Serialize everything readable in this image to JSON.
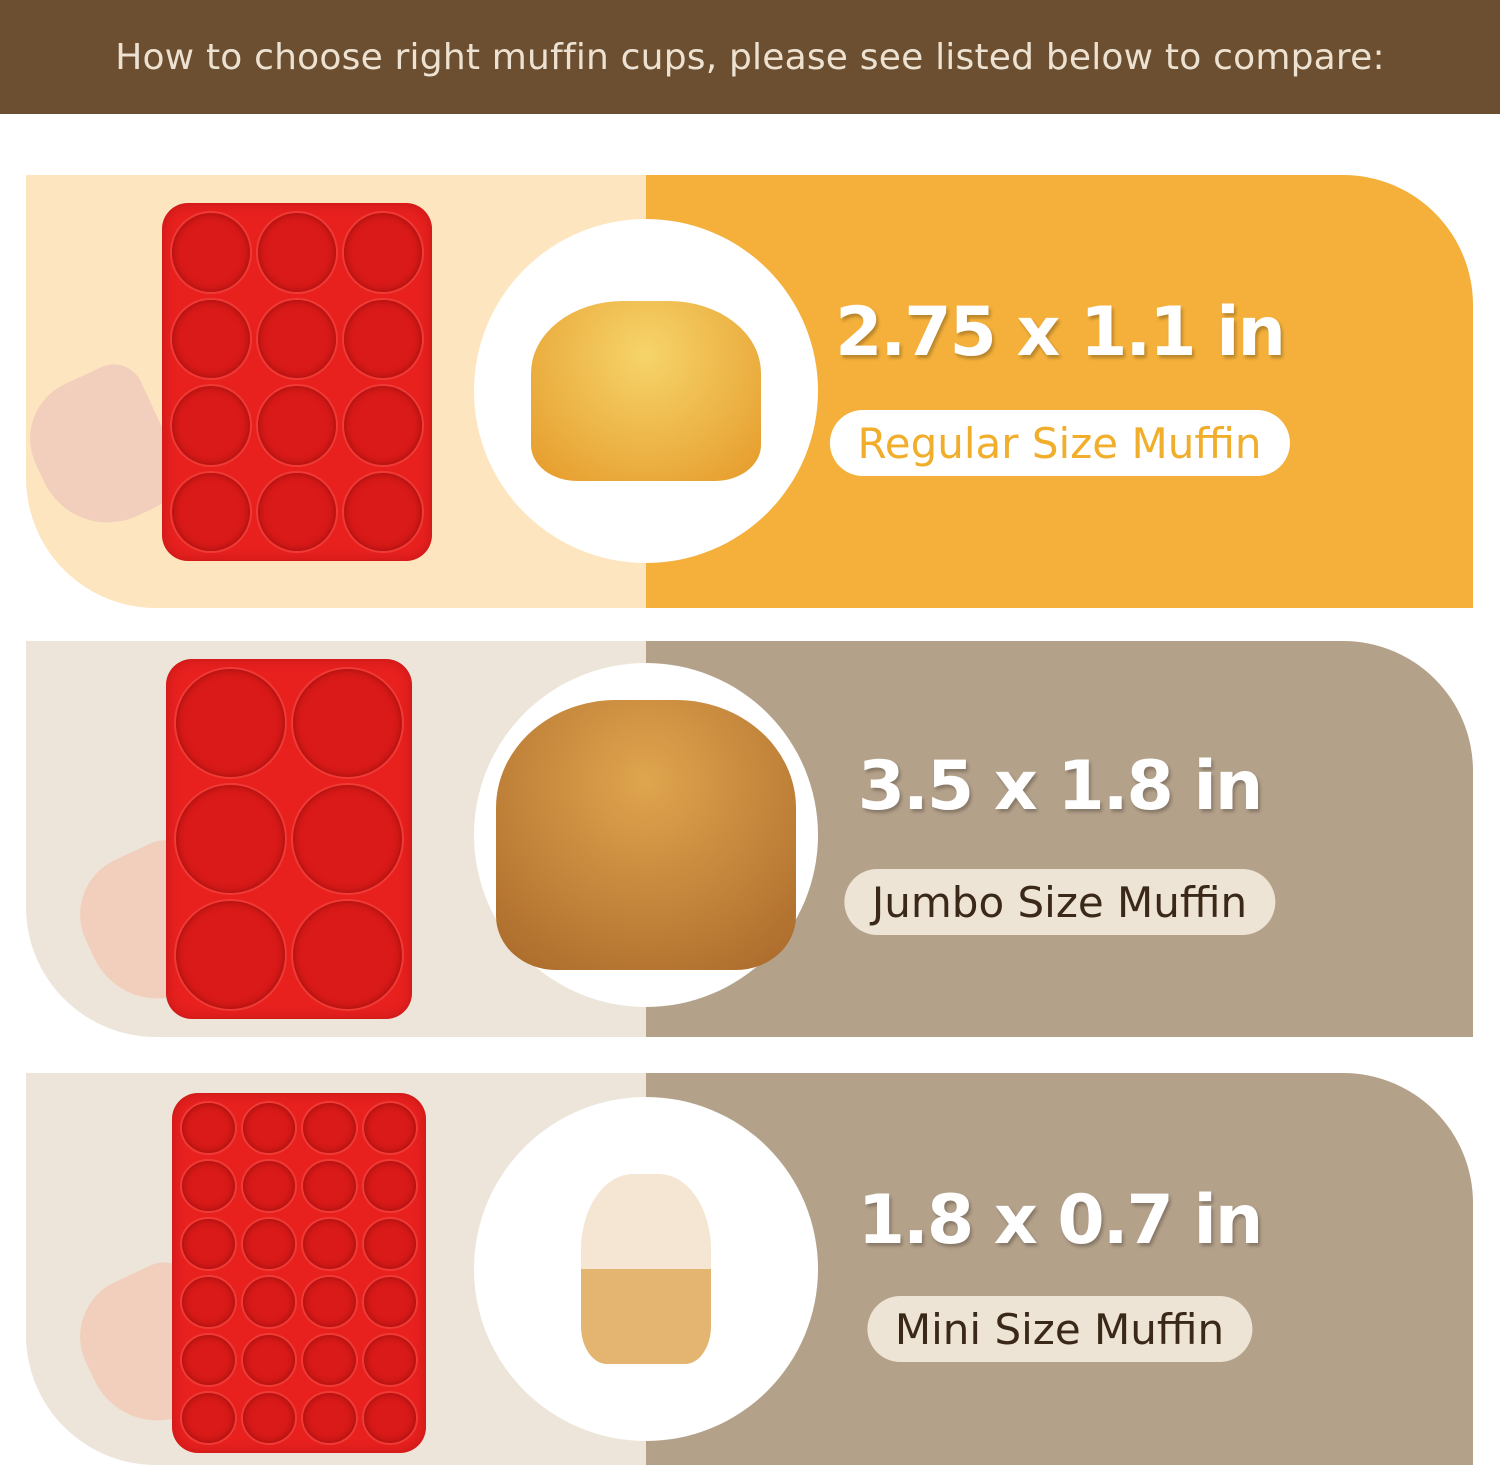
{
  "header": {
    "title": "How to choose right muffin cups, please see listed below to compare:"
  },
  "rows": [
    {
      "size": "2.75 x 1.1 in",
      "label": "Regular Size Muffin",
      "cups": 12,
      "colors": {
        "left": "#fde6bf",
        "right": "#f4b03a",
        "pill_bg": "#ffffff",
        "pill_text": "#f0ae2c"
      }
    },
    {
      "size": "3.5 x 1.8 in",
      "label": "Jumbo Size Muffin",
      "cups": 6,
      "colors": {
        "left": "#ede5d9",
        "right": "#b4a18a",
        "pill_bg": "#eee4d5",
        "pill_text": "#3a2818"
      }
    },
    {
      "size": "1.8 x 0.7 in",
      "label": "Mini Size Muffin",
      "cups": 24,
      "colors": {
        "left": "#ede5d9",
        "right": "#b4a18a",
        "pill_bg": "#eee4d5",
        "pill_text": "#3a2818"
      }
    }
  ]
}
